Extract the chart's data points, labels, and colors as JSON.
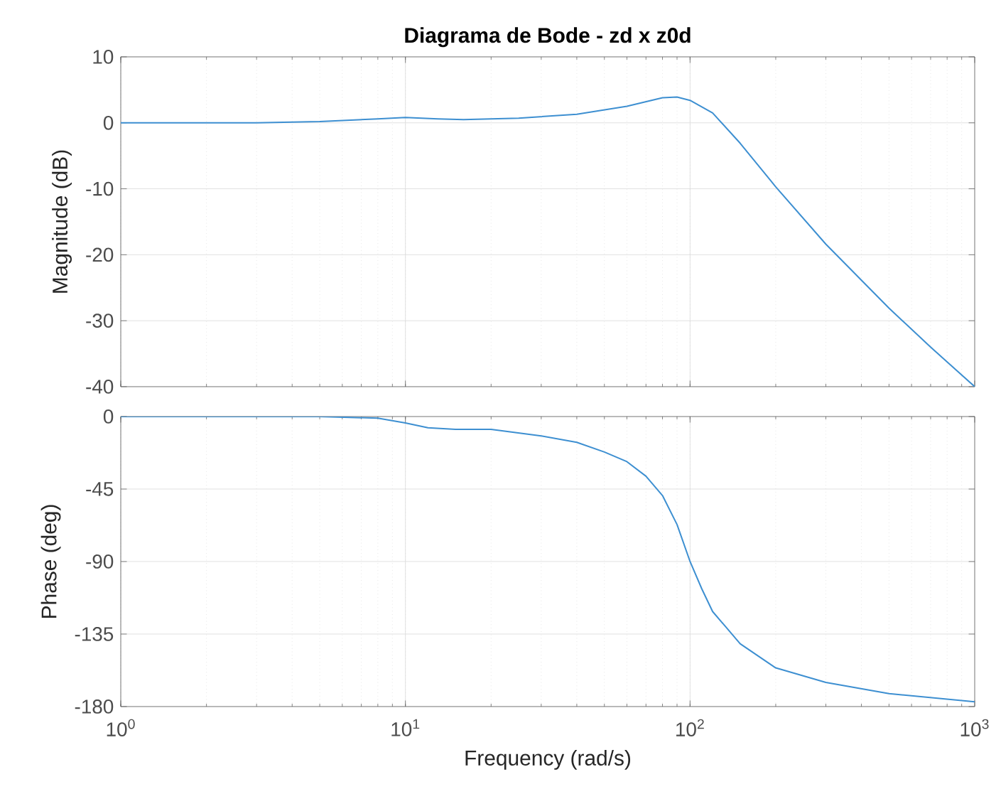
{
  "chart_data": [
    {
      "type": "line",
      "title": "Diagrama de Bode - zd x z0d",
      "ylabel": "Magnitude (dB)",
      "log": "x",
      "grid": true,
      "tick_labels": "y",
      "xlim": [
        1,
        1000
      ],
      "ylim": [
        -40,
        10
      ],
      "yticks": [
        -40,
        -30,
        -20,
        -10,
        0,
        10
      ],
      "xticks": [
        {
          "value": 1,
          "label": null
        },
        {
          "value": 10,
          "label": null
        },
        {
          "value": 100,
          "label": null
        },
        {
          "value": 1000,
          "label": null
        }
      ],
      "x": [
        1,
        2,
        3,
        5,
        8,
        10,
        13,
        16,
        25,
        40,
        60,
        80,
        90,
        100,
        120,
        150,
        200,
        300,
        500,
        700,
        1000
      ],
      "series": [
        {
          "color": "#3d8fd1",
          "values": [
            0,
            0,
            0,
            0.2,
            0.6,
            0.8,
            0.6,
            0.5,
            0.7,
            1.3,
            2.5,
            3.8,
            3.9,
            3.4,
            1.5,
            -3.1,
            -9.7,
            -18.4,
            -28.1,
            -34,
            -40
          ]
        }
      ]
    },
    {
      "type": "line",
      "ylabel": "Phase (deg)",
      "xlabel": "Frequency  (rad/s)",
      "log": "x",
      "grid": true,
      "xlim": [
        1,
        1000
      ],
      "ylim": [
        -180,
        0
      ],
      "yticks": [
        -180,
        -135,
        -90,
        -45,
        0
      ],
      "xticks": [
        {
          "value": 1,
          "label": "10$^{0}$"
        },
        {
          "value": 10,
          "label": "10$^{1}$"
        },
        {
          "value": 100,
          "label": "10$^{2}$"
        },
        {
          "value": 1000,
          "label": "10$^{3}$"
        }
      ],
      "x": [
        1,
        5,
        8,
        10,
        12,
        15,
        20,
        30,
        40,
        50,
        60,
        70,
        80,
        90,
        100,
        110,
        120,
        150,
        200,
        300,
        500,
        1000
      ],
      "series": [
        {
          "color": "#3d8fd1",
          "values": [
            0,
            0,
            -1,
            -4,
            -7,
            -8,
            -8,
            -12,
            -16,
            -22,
            -28,
            -37,
            -49,
            -67,
            -90,
            -107,
            -121,
            -141,
            -156,
            -165,
            -172,
            -177
          ]
        }
      ]
    }
  ]
}
